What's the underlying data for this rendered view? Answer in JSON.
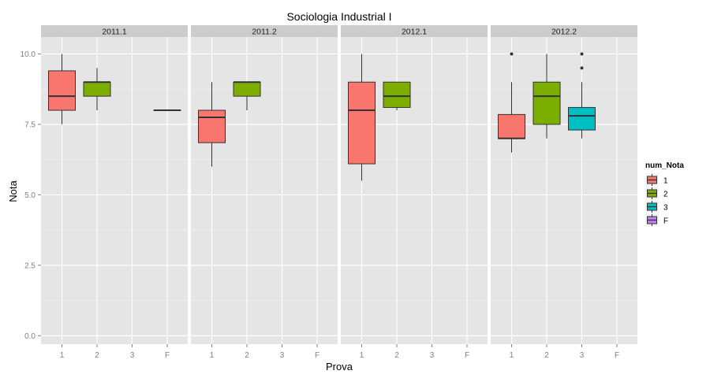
{
  "chart_data": {
    "type": "boxplot",
    "title": "Sociologia Industrial I",
    "xlabel": "Prova",
    "ylabel": "Nota",
    "categories": [
      "1",
      "2",
      "3",
      "F"
    ],
    "ylim": [
      -0.3,
      10.6
    ],
    "yticks": [
      0.0,
      2.5,
      5.0,
      7.5,
      10.0
    ],
    "ytick_labels": [
      "0.0",
      "2.5",
      "5.0",
      "7.5",
      "10.0"
    ],
    "grid": true,
    "legend": {
      "title": "num_Nota",
      "position": "right",
      "entries": [
        {
          "label": "1",
          "color": "#F8766D"
        },
        {
          "label": "2",
          "color": "#7CAE00"
        },
        {
          "label": "3",
          "color": "#00BFC4"
        },
        {
          "label": "F",
          "color": "#C77CFF"
        }
      ]
    },
    "facets": [
      {
        "label": "2011.1",
        "boxes": [
          {
            "category": "1",
            "min": 7.5,
            "q1": 8.0,
            "median": 8.5,
            "q3": 9.4,
            "max": 10.0,
            "outliers": []
          },
          {
            "category": "2",
            "min": 8.0,
            "q1": 8.5,
            "median": 9.0,
            "q3": 9.0,
            "max": 9.5,
            "outliers": []
          },
          {
            "category": "F",
            "min": 8.0,
            "q1": 8.0,
            "median": 8.0,
            "q3": 8.0,
            "max": 8.0,
            "outliers": []
          }
        ]
      },
      {
        "label": "2011.2",
        "boxes": [
          {
            "category": "1",
            "min": 6.0,
            "q1": 6.85,
            "median": 7.75,
            "q3": 8.0,
            "max": 9.0,
            "outliers": []
          },
          {
            "category": "2",
            "min": 8.0,
            "q1": 8.5,
            "median": 9.0,
            "q3": 9.0,
            "max": 9.0,
            "outliers": []
          }
        ]
      },
      {
        "label": "2012.1",
        "boxes": [
          {
            "category": "1",
            "min": 5.5,
            "q1": 6.1,
            "median": 8.0,
            "q3": 9.0,
            "max": 10.0,
            "outliers": []
          },
          {
            "category": "2",
            "min": 8.0,
            "q1": 8.1,
            "median": 8.5,
            "q3": 9.0,
            "max": 9.0,
            "outliers": []
          }
        ]
      },
      {
        "label": "2012.2",
        "boxes": [
          {
            "category": "1",
            "min": 6.5,
            "q1": 7.0,
            "median": 7.0,
            "q3": 7.85,
            "max": 9.0,
            "outliers": [
              10.0
            ]
          },
          {
            "category": "2",
            "min": 7.0,
            "q1": 7.5,
            "median": 8.5,
            "q3": 9.0,
            "max": 10.0,
            "outliers": []
          },
          {
            "category": "3",
            "min": 7.0,
            "q1": 7.3,
            "median": 7.8,
            "q3": 8.1,
            "max": 9.0,
            "outliers": [
              9.5,
              10.0
            ]
          }
        ]
      }
    ]
  }
}
